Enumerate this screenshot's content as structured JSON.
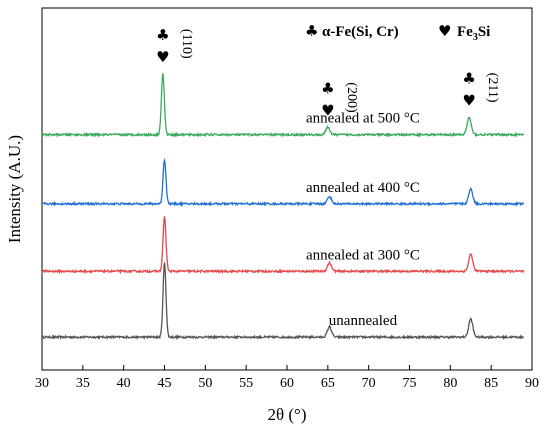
{
  "chart_data": {
    "type": "line",
    "xlabel": "2θ (°)",
    "ylabel": "Intensity (A.U.)",
    "xlim": [
      30,
      90
    ],
    "x_ticks": [
      30,
      35,
      40,
      45,
      50,
      55,
      60,
      65,
      70,
      75,
      80,
      85,
      90
    ],
    "x_tick_labels": [
      "30",
      "35",
      "40",
      "45",
      "50",
      "55",
      "60",
      "65",
      "70",
      "75",
      "80",
      "85",
      "90"
    ],
    "grid": false,
    "y_tick_labels_shown": false,
    "legend": {
      "placement": "top-right",
      "entries": [
        {
          "marker": "♣",
          "text": "α-Fe(Si, Cr)",
          "icon": "club-icon"
        },
        {
          "marker": "♥",
          "text_main": "Fe",
          "text_sub": "3",
          "text_tail": "Si",
          "icon": "heart-icon"
        }
      ]
    },
    "peaks": [
      {
        "position": 44.8,
        "label": "(110)",
        "markers": [
          "♣",
          "♥"
        ]
      },
      {
        "position": 65.0,
        "label": "(200)",
        "markers": [
          "♣",
          "♥"
        ]
      },
      {
        "position": 82.3,
        "label": "(211)",
        "markers": [
          "♣",
          "♥"
        ]
      }
    ],
    "series": [
      {
        "label": "unannealed",
        "color": "#555555",
        "baseline": 0.0,
        "peaks": [
          {
            "position": 45.0,
            "height": 2.25,
            "width": 0.18
          },
          {
            "position": 65.2,
            "height": 0.32,
            "width": 0.25
          },
          {
            "position": 82.5,
            "height": 0.55,
            "width": 0.25
          }
        ]
      },
      {
        "label": "annealed at 300 °C",
        "color": "#e8474a",
        "baseline": 2.0,
        "peaks": [
          {
            "position": 45.0,
            "height": 1.65,
            "width": 0.18
          },
          {
            "position": 65.2,
            "height": 0.25,
            "width": 0.25
          },
          {
            "position": 82.5,
            "height": 0.52,
            "width": 0.25
          }
        ]
      },
      {
        "label": "annealed at 400 °C",
        "color": "#1f6fd6",
        "baseline": 4.05,
        "peaks": [
          {
            "position": 45.0,
            "height": 1.35,
            "width": 0.18
          },
          {
            "position": 65.2,
            "height": 0.22,
            "width": 0.25
          },
          {
            "position": 82.5,
            "height": 0.45,
            "width": 0.25
          }
        ]
      },
      {
        "label": "annealed at 500 °C",
        "color": "#3aaa5c",
        "baseline": 6.15,
        "peaks": [
          {
            "position": 44.8,
            "height": 1.85,
            "width": 0.18
          },
          {
            "position": 65.0,
            "height": 0.22,
            "width": 0.25
          },
          {
            "position": 82.3,
            "height": 0.52,
            "width": 0.25
          }
        ]
      }
    ],
    "ylim": [
      -1.0,
      10.0
    ]
  }
}
